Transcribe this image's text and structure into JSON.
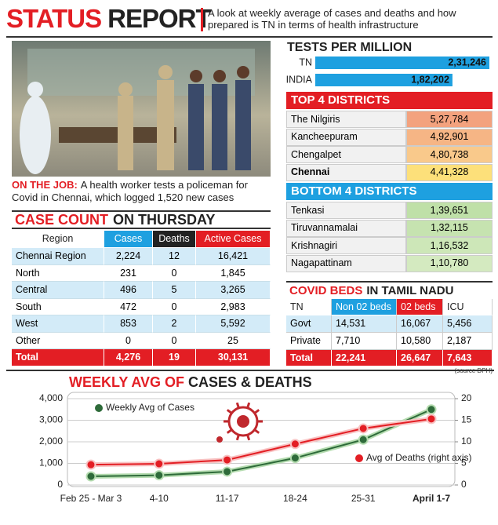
{
  "header": {
    "title": [
      "STATUS",
      "REPORT"
    ],
    "subtitle": "A look at weekly average of cases and deaths and how prepared is TN in terms of health infrastructure"
  },
  "photo": {
    "caption_lead": "ON THE JOB:",
    "caption": "A health worker tests a policeman for Covid in Chennai, which logged 1,520 new cases"
  },
  "top_districts": {
    "title": "TOP 4 DISTRICTS",
    "rows": [
      [
        "The Nilgiris",
        "5,27,784"
      ],
      [
        "Kancheepuram",
        "4,92,901"
      ],
      [
        "Chengalpet",
        "4,80,738"
      ],
      [
        "Chennai",
        "4,41,328"
      ]
    ]
  },
  "bottom_districts": {
    "title": "BOTTOM 4 DISTRICTS",
    "rows": [
      [
        "Tenkasi",
        "1,39,651"
      ],
      [
        "Tiruvannamalai",
        "1,32,115"
      ],
      [
        "Krishnagiri",
        "1,16,532"
      ],
      [
        "Nagapattinam",
        "1,10,780"
      ]
    ]
  },
  "case_count": {
    "title": [
      "CASE COUNT",
      "ON THURSDAY"
    ],
    "columns": [
      "Region",
      "Cases",
      "Deaths",
      "Active Cases"
    ],
    "rows": [
      [
        "Chennai Region",
        "2,224",
        "12",
        "16,421"
      ],
      [
        "North",
        "231",
        "0",
        "1,845"
      ],
      [
        "Central",
        "496",
        "5",
        "3,265"
      ],
      [
        "South",
        "472",
        "0",
        "2,983"
      ],
      [
        "West",
        "853",
        "2",
        "5,592"
      ],
      [
        "Other",
        "0",
        "0",
        "25"
      ]
    ],
    "total": [
      "Total",
      "4,276",
      "19",
      "30,131"
    ]
  },
  "covid_beds": {
    "title": [
      "COVID BEDS",
      "IN TAMIL NADU"
    ],
    "columns": [
      "TN",
      "Non 02 beds",
      "02 beds",
      "ICU"
    ],
    "rows": [
      [
        "Govt",
        "14,531",
        "16,067",
        "5,456"
      ],
      [
        "Private",
        "7,710",
        "10,580",
        "2,187"
      ]
    ],
    "total": [
      "Total",
      "22,241",
      "26,647",
      "7,643"
    ],
    "source": "(source DPH)"
  },
  "chart_data": [
    {
      "type": "bar",
      "title": "TESTS PER MILLION",
      "categories": [
        "TN",
        "INDIA"
      ],
      "values": [
        231246,
        182202
      ],
      "value_labels": [
        "2,31,246",
        "1,82,202"
      ],
      "color": "#1ea0e0"
    },
    {
      "type": "line",
      "title": [
        "WEEKLY AVG OF",
        "CASES & DEATHS"
      ],
      "categories": [
        "Feb 25 - Mar 3",
        "4-10",
        "11-17",
        "18-24",
        "25-31",
        "April 1-7"
      ],
      "series": [
        {
          "name": "Weekly Avg of Cases",
          "color": "#2e6b3a",
          "values": [
            400,
            450,
            620,
            1250,
            2100,
            3500
          ]
        },
        {
          "name": "Avg of Deaths (right axis)",
          "color": "#e31e24",
          "values": [
            4.7,
            4.9,
            5.8,
            9.5,
            13.1,
            15.3
          ],
          "axis": "y2"
        }
      ],
      "ylim": [
        0,
        4000
      ],
      "yticks": [
        0,
        {
          "value": 1000,
          "label": "1,000"
        },
        {
          "value": 2000,
          "label": "2,000"
        },
        {
          "value": 3000,
          "label": "3,000"
        },
        {
          "value": 4000,
          "label": "4,000"
        }
      ],
      "y2lim": [
        0,
        20
      ],
      "y2ticks": [
        0,
        5,
        10,
        15,
        20
      ],
      "grid": true
    }
  ]
}
